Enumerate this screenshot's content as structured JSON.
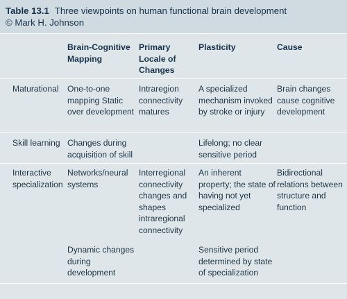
{
  "caption": {
    "number": "Table 13.1",
    "title": "Three viewpoints on human functional brain development",
    "copyright": "© Mark H. Johnson"
  },
  "columns": [
    "",
    "Brain-Cognitive Mapping",
    "Primary Locale of Changes",
    "Plasticity",
    "Cause"
  ],
  "rows": [
    {
      "label": "Maturational",
      "mapping": "One-to-one mapping Static over development",
      "locale": "Intraregion connectivity matures",
      "plasticity": "A specialized mechanism invoked by stroke or injury",
      "cause": "Brain changes cause cognitive development"
    },
    {
      "label": "Skill learning",
      "mapping": "Changes during acquisition of skill",
      "locale": "",
      "plasticity": "Lifelong; no clear sensitive period",
      "cause": ""
    },
    {
      "label": "Interactive specialization",
      "mapping": "Networks/neural systems",
      "locale": "Interregional connectivity changes and shapes intraregional connectivity",
      "plasticity": "An inherent property; the state of having not yet specialized",
      "cause": "Bidirectional relations between structure and function",
      "mapping_continued": "Dynamic changes during development",
      "plasticity_continued": "Sensitive period determined by state of specialization"
    }
  ]
}
